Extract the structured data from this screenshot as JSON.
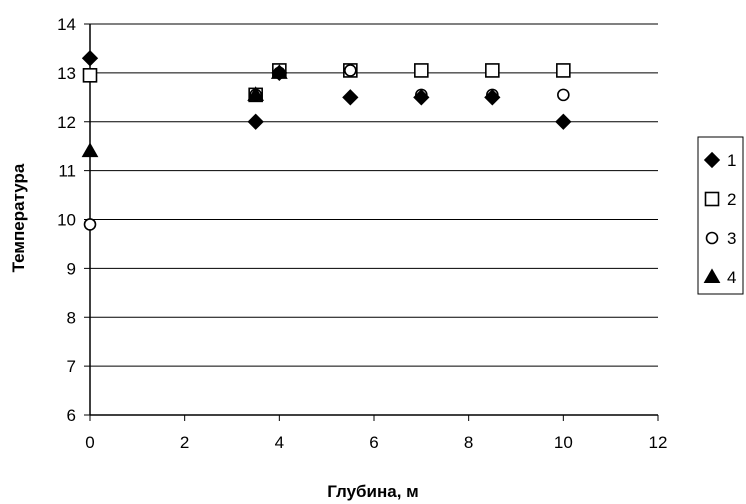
{
  "chart_data": {
    "type": "scatter",
    "title": "",
    "xlabel": "Глубина, м",
    "ylabel": "Температура",
    "xlim": [
      0,
      12
    ],
    "ylim": [
      6,
      14
    ],
    "x_ticks": [
      0,
      2,
      4,
      6,
      8,
      10,
      12
    ],
    "y_ticks": [
      6,
      7,
      8,
      9,
      10,
      11,
      12,
      13,
      14
    ],
    "grid": "horizontal",
    "legend_position": "right",
    "series": [
      {
        "name": "1",
        "marker": "diamond",
        "filled": true,
        "color": "#000000",
        "points": [
          [
            0,
            13.3
          ],
          [
            3.5,
            12.0
          ],
          [
            4.0,
            13.0
          ],
          [
            5.5,
            12.5
          ],
          [
            7.0,
            12.5
          ],
          [
            8.5,
            12.5
          ],
          [
            10.0,
            12.0
          ]
        ]
      },
      {
        "name": "2",
        "marker": "square",
        "filled": false,
        "color": "#000000",
        "points": [
          [
            0,
            12.95
          ],
          [
            3.5,
            12.55
          ],
          [
            4.0,
            13.05
          ],
          [
            5.5,
            13.05
          ],
          [
            7.0,
            13.05
          ],
          [
            8.5,
            13.05
          ],
          [
            10.0,
            13.05
          ]
        ]
      },
      {
        "name": "3",
        "marker": "circle",
        "filled": false,
        "color": "#000000",
        "points": [
          [
            0,
            9.9
          ],
          [
            3.5,
            12.55
          ],
          [
            4.0,
            13.0
          ],
          [
            5.5,
            13.05
          ],
          [
            7.0,
            12.55
          ],
          [
            8.5,
            12.55
          ],
          [
            10.0,
            12.55
          ]
        ]
      },
      {
        "name": "4",
        "marker": "triangle",
        "filled": true,
        "color": "#000000",
        "points": [
          [
            0,
            11.4
          ],
          [
            3.5,
            12.55
          ],
          [
            4.0,
            13.0
          ]
        ]
      }
    ]
  }
}
